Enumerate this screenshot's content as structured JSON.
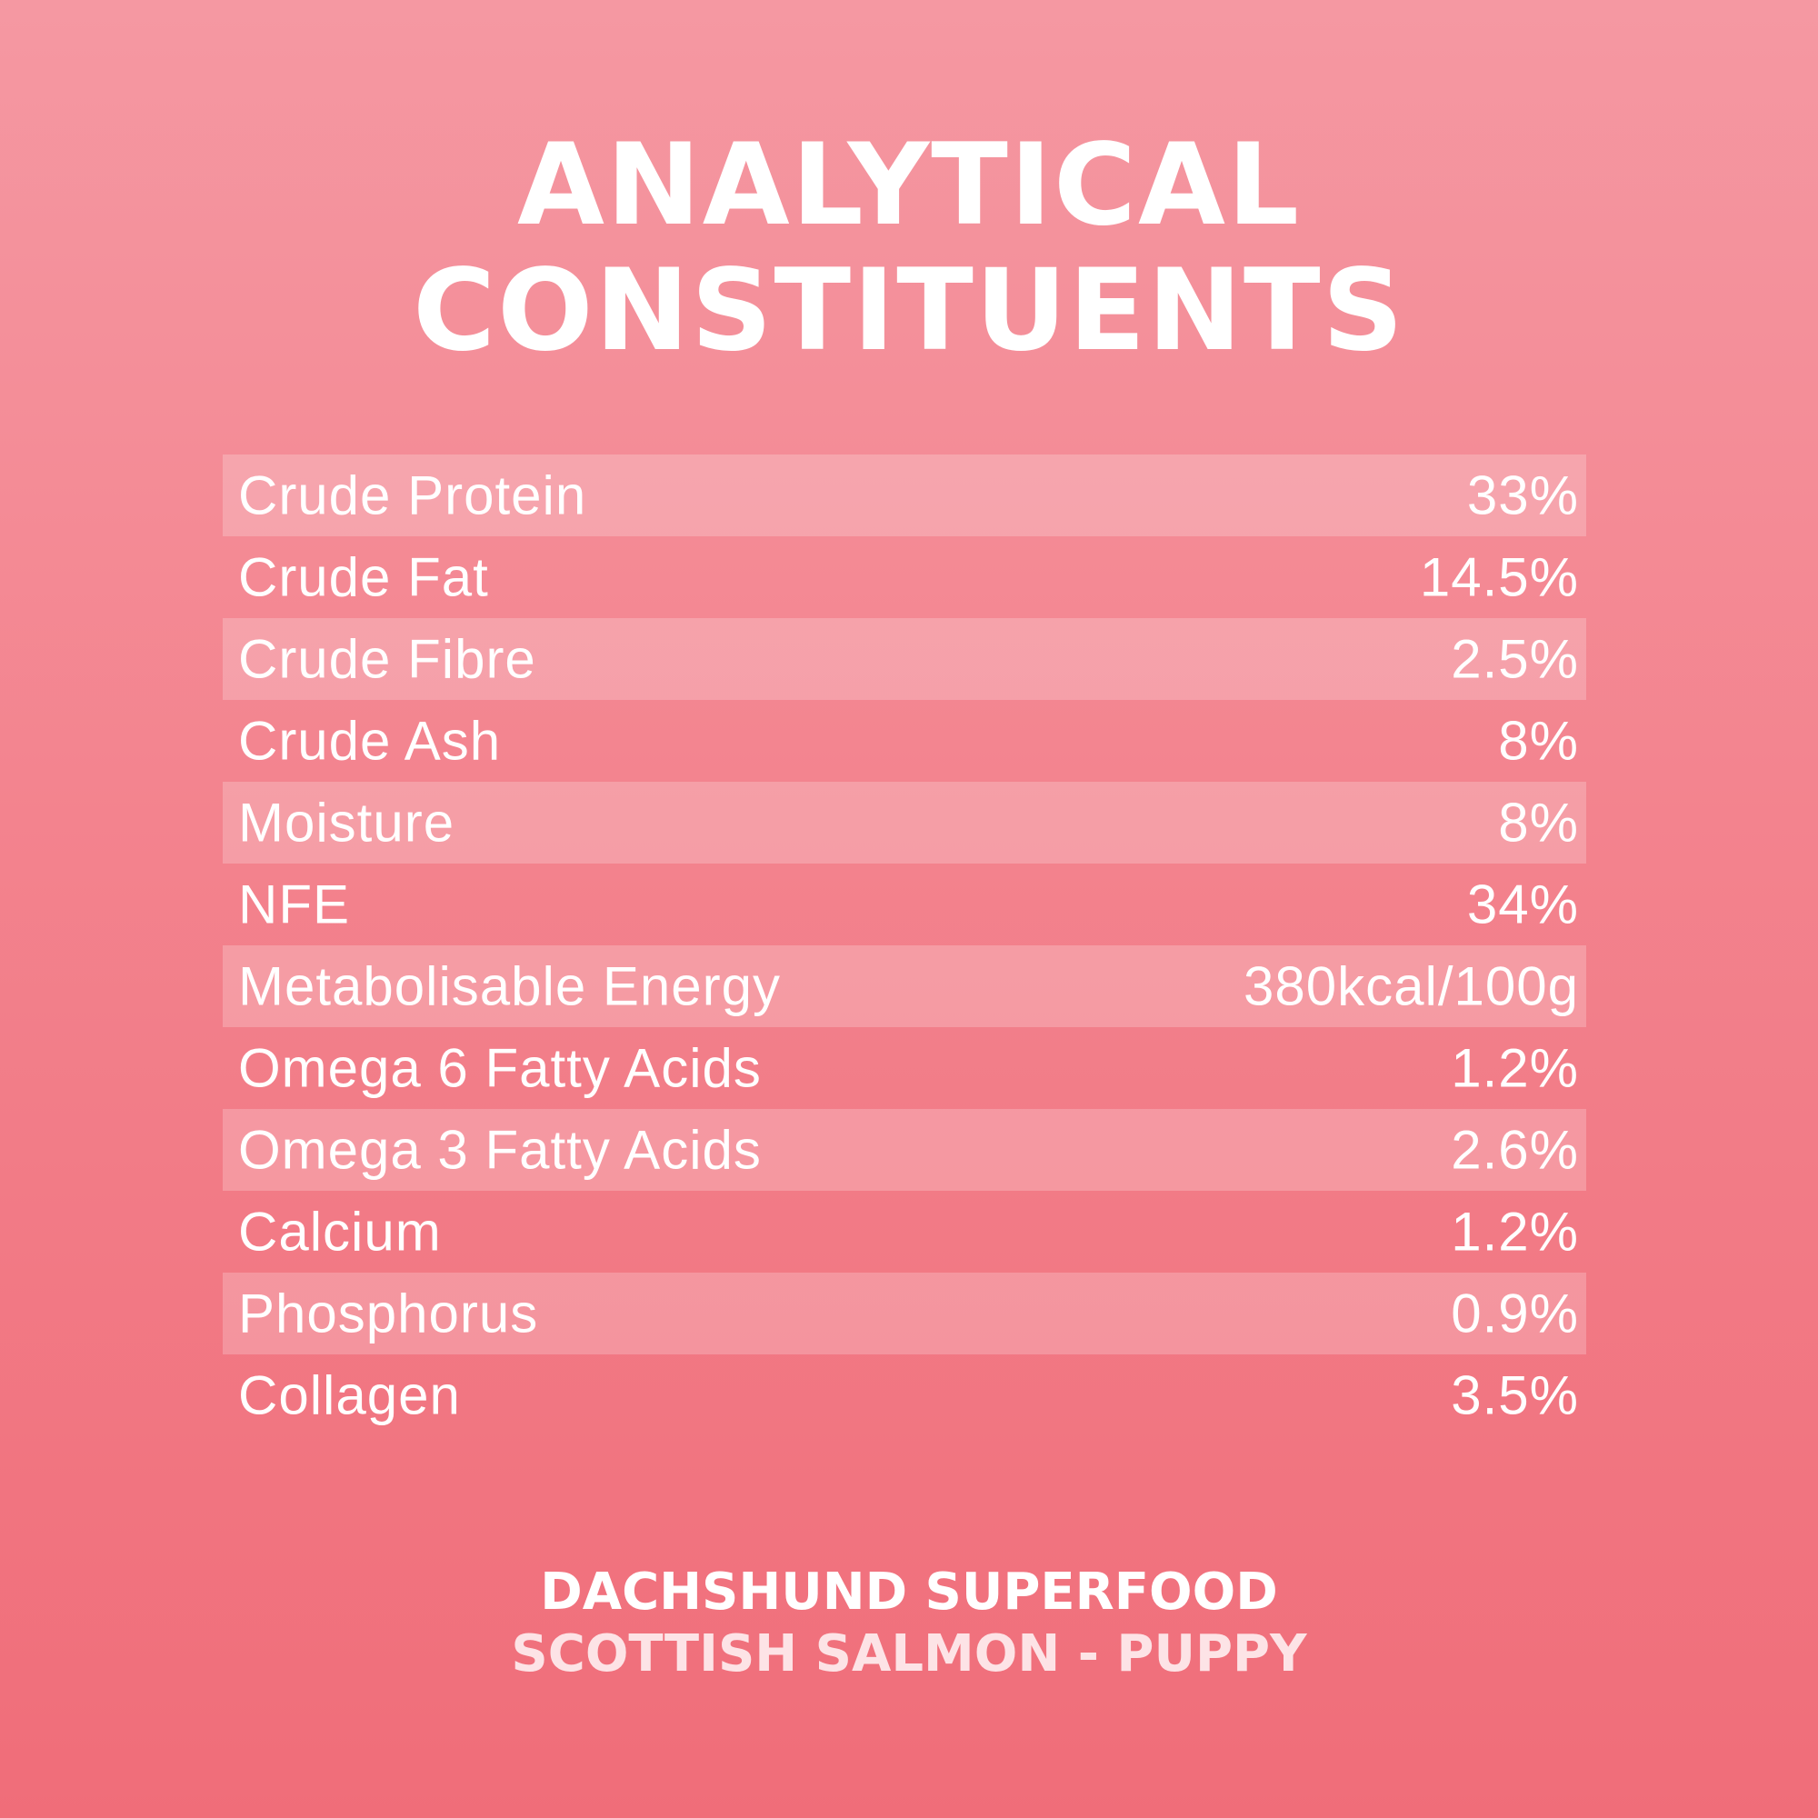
{
  "title": {
    "line1": "ANALYTICAL",
    "line2": "CONSTITUENTS"
  },
  "constituents": [
    {
      "label": "Crude Protein",
      "value": "33%"
    },
    {
      "label": "Crude Fat",
      "value": "14.5%"
    },
    {
      "label": "Crude Fibre",
      "value": "2.5%"
    },
    {
      "label": "Crude Ash",
      "value": "8%"
    },
    {
      "label": "Moisture",
      "value": "8%"
    },
    {
      "label": "NFE",
      "value": "34%"
    },
    {
      "label": "Metabolisable Energy",
      "value": "380kcal/100g"
    },
    {
      "label": "Omega 6 Fatty Acids",
      "value": "1.2%"
    },
    {
      "label": "Omega 3 Fatty Acids",
      "value": "2.6%"
    },
    {
      "label": "Calcium",
      "value": "1.2%"
    },
    {
      "label": "Phosphorus",
      "value": "0.9%"
    },
    {
      "label": "Collagen",
      "value": "3.5%"
    }
  ],
  "footer": {
    "brand": "DACHSHUND SUPERFOOD",
    "product": "SCOTTISH SALMON - PUPPY"
  },
  "colors": {
    "background_top": "#f598a2",
    "background_bottom": "#f06d79",
    "text": "#ffffff",
    "row_highlight": "rgba(255,255,255,0.22)"
  }
}
